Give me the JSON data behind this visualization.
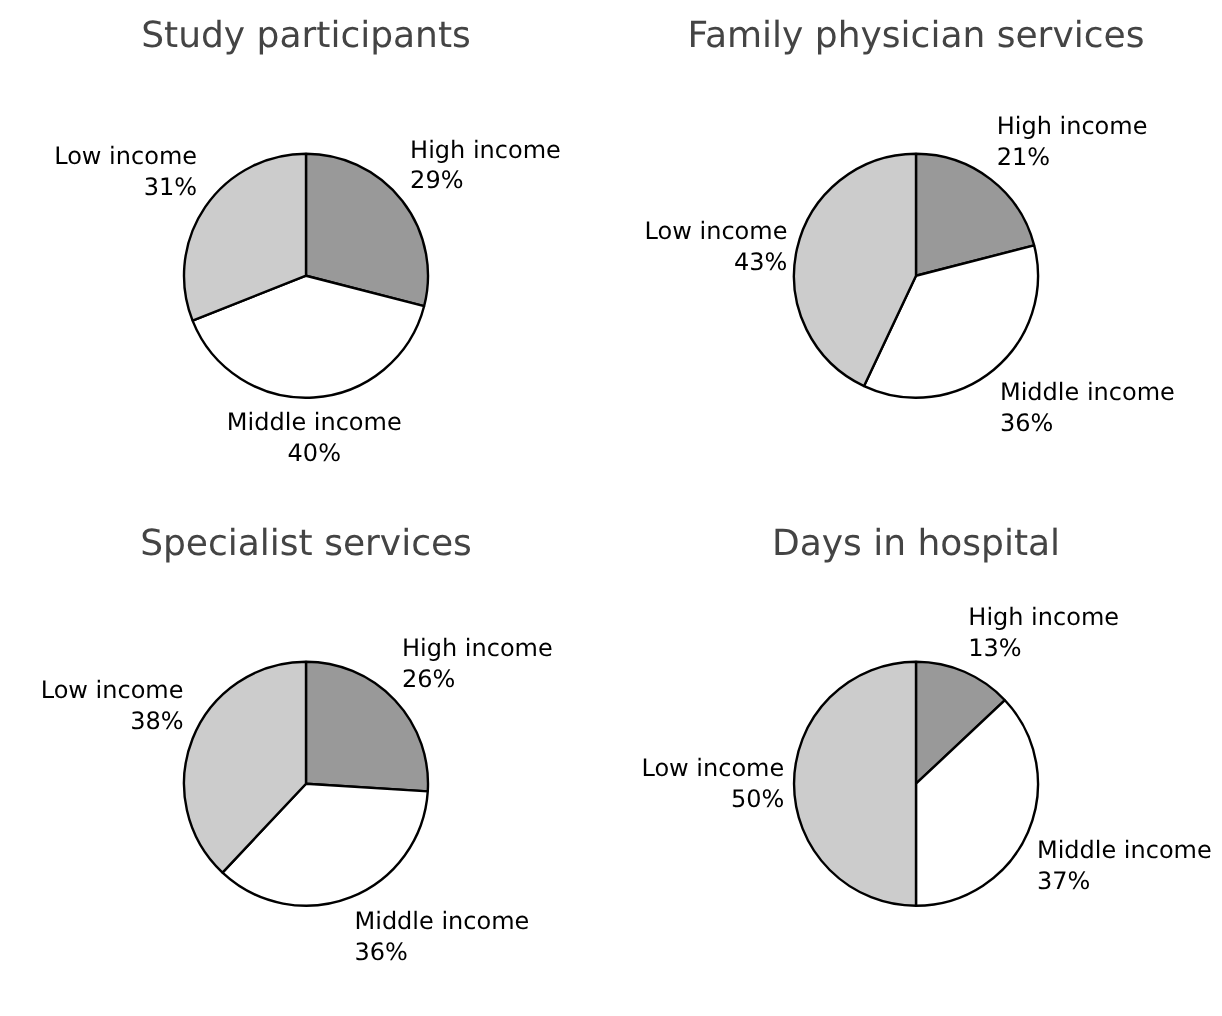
{
  "chart_data": [
    {
      "type": "pie",
      "title": "Study participants",
      "categories": [
        "High income",
        "Middle income",
        "Low income"
      ],
      "values": [
        29,
        40,
        31
      ],
      "value_labels": [
        "29%",
        "40%",
        "31%"
      ],
      "colors": [
        "#999999",
        "#ffffff",
        "#cccccc"
      ]
    },
    {
      "type": "pie",
      "title": "Family physician services",
      "categories": [
        "High income",
        "Middle income",
        "Low income"
      ],
      "values": [
        21,
        36,
        43
      ],
      "value_labels": [
        "21%",
        "36%",
        "43%"
      ],
      "colors": [
        "#999999",
        "#ffffff",
        "#cccccc"
      ]
    },
    {
      "type": "pie",
      "title": "Specialist services",
      "categories": [
        "High income",
        "Middle income",
        "Low income"
      ],
      "values": [
        26,
        36,
        38
      ],
      "value_labels": [
        "26%",
        "36%",
        "38%"
      ],
      "colors": [
        "#999999",
        "#ffffff",
        "#cccccc"
      ]
    },
    {
      "type": "pie",
      "title": "Days in hospital",
      "categories": [
        "High income",
        "Middle income",
        "Low income"
      ],
      "values": [
        13,
        37,
        50
      ],
      "value_labels": [
        "13%",
        "37%",
        "50%"
      ],
      "colors": [
        "#999999",
        "#ffffff",
        "#cccccc"
      ]
    }
  ]
}
